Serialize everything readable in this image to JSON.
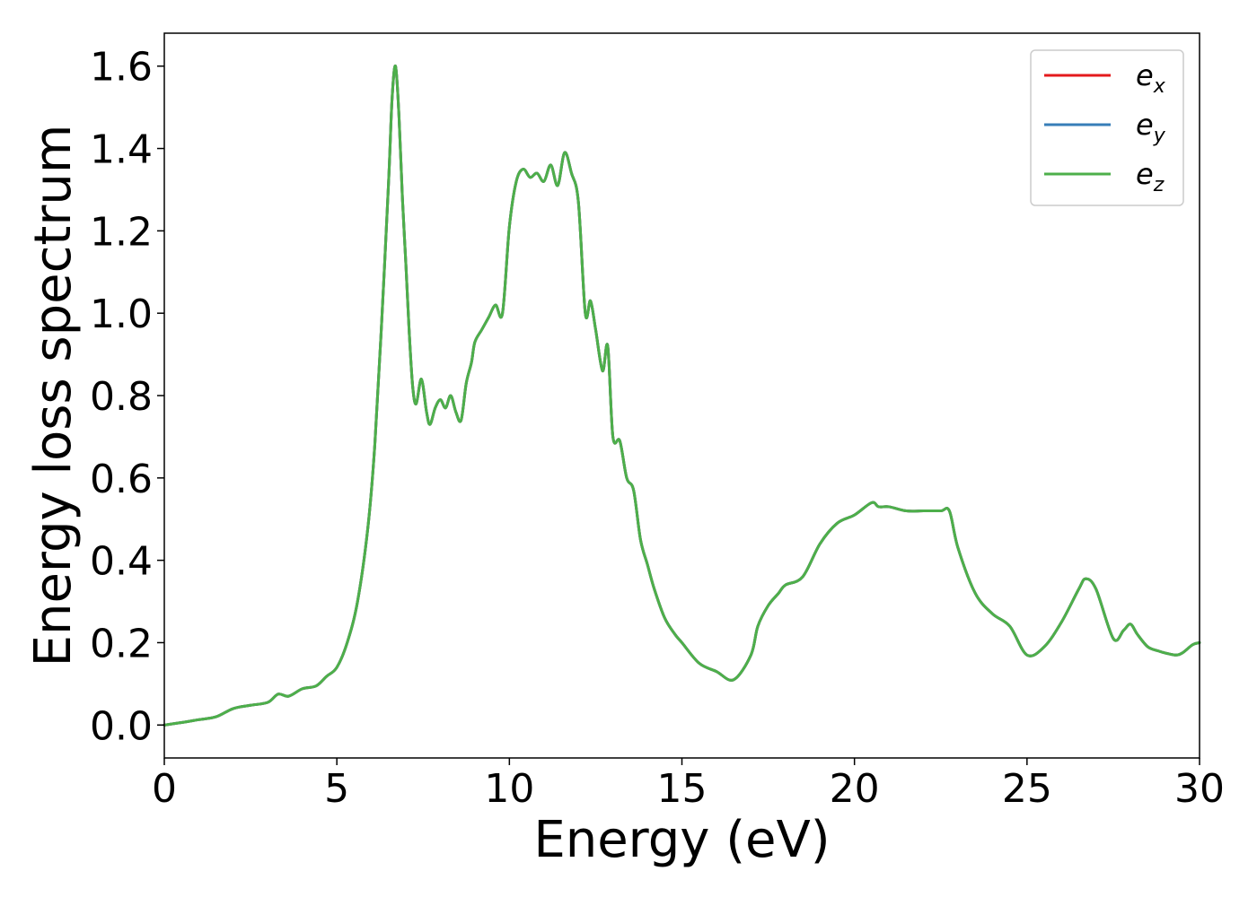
{
  "chart_data": {
    "type": "line",
    "xlabel": "Energy (eV)",
    "ylabel": "Energy loss spectrum",
    "xlim": [
      0,
      30
    ],
    "ylim": [
      -0.08,
      1.68
    ],
    "xticks": [
      0,
      5,
      10,
      15,
      20,
      25,
      30
    ],
    "xtick_labels": [
      "0",
      "5",
      "10",
      "15",
      "20",
      "25",
      "30"
    ],
    "yticks": [
      0.0,
      0.2,
      0.4,
      0.6,
      0.8,
      1.0,
      1.2,
      1.4,
      1.6
    ],
    "ytick_labels": [
      "0.0",
      "0.2",
      "0.4",
      "0.6",
      "0.8",
      "1.0",
      "1.2",
      "1.4",
      "1.6"
    ],
    "grid": false,
    "legend_position": "top-right",
    "x": [
      0.0,
      0.5,
      1.0,
      1.5,
      2.0,
      2.5,
      3.0,
      3.3,
      3.6,
      4.0,
      4.4,
      4.7,
      5.0,
      5.3,
      5.6,
      5.9,
      6.1,
      6.3,
      6.5,
      6.6,
      6.7,
      6.8,
      6.9,
      7.0,
      7.1,
      7.2,
      7.3,
      7.45,
      7.6,
      7.7,
      7.85,
      8.0,
      8.15,
      8.3,
      8.45,
      8.6,
      8.75,
      8.9,
      9.0,
      9.2,
      9.4,
      9.6,
      9.8,
      10.0,
      10.2,
      10.4,
      10.6,
      10.8,
      11.0,
      11.2,
      11.4,
      11.6,
      11.8,
      12.0,
      12.2,
      12.35,
      12.5,
      12.7,
      12.85,
      13.0,
      13.2,
      13.4,
      13.6,
      13.8,
      14.0,
      14.2,
      14.5,
      14.8,
      15.0,
      15.5,
      16.0,
      16.5,
      17.0,
      17.2,
      17.5,
      17.8,
      18.0,
      18.5,
      19.0,
      19.5,
      20.0,
      20.5,
      20.7,
      21.0,
      21.5,
      22.0,
      22.5,
      22.75,
      23.0,
      23.5,
      24.0,
      24.5,
      25.0,
      25.5,
      26.0,
      26.5,
      26.7,
      27.0,
      27.5,
      27.8,
      28.0,
      28.2,
      28.5,
      28.8,
      29.0,
      29.3,
      29.5,
      29.8,
      30.0
    ],
    "series": [
      {
        "name": "e_x",
        "color": "#e41a1c",
        "values": [
          0.0,
          0.006,
          0.013,
          0.02,
          0.04,
          0.048,
          0.055,
          0.075,
          0.07,
          0.088,
          0.095,
          0.118,
          0.14,
          0.2,
          0.3,
          0.48,
          0.68,
          0.98,
          1.32,
          1.52,
          1.6,
          1.48,
          1.28,
          1.12,
          0.95,
          0.82,
          0.78,
          0.84,
          0.76,
          0.73,
          0.77,
          0.79,
          0.77,
          0.8,
          0.76,
          0.74,
          0.83,
          0.88,
          0.93,
          0.96,
          0.99,
          1.02,
          1.0,
          1.21,
          1.32,
          1.35,
          1.33,
          1.34,
          1.32,
          1.36,
          1.31,
          1.39,
          1.34,
          1.27,
          1.0,
          1.03,
          0.96,
          0.86,
          0.92,
          0.7,
          0.69,
          0.6,
          0.57,
          0.45,
          0.39,
          0.33,
          0.26,
          0.22,
          0.2,
          0.15,
          0.13,
          0.11,
          0.17,
          0.24,
          0.29,
          0.32,
          0.34,
          0.36,
          0.44,
          0.49,
          0.51,
          0.54,
          0.53,
          0.53,
          0.52,
          0.52,
          0.52,
          0.52,
          0.43,
          0.32,
          0.27,
          0.24,
          0.17,
          0.19,
          0.25,
          0.33,
          0.355,
          0.33,
          0.21,
          0.23,
          0.245,
          0.22,
          0.19,
          0.18,
          0.175,
          0.17,
          0.175,
          0.195,
          0.2
        ]
      },
      {
        "name": "e_y",
        "color": "#377eb8",
        "values": [
          0.0,
          0.006,
          0.013,
          0.02,
          0.04,
          0.048,
          0.055,
          0.075,
          0.07,
          0.088,
          0.095,
          0.118,
          0.14,
          0.2,
          0.3,
          0.48,
          0.68,
          0.98,
          1.32,
          1.52,
          1.6,
          1.48,
          1.28,
          1.12,
          0.95,
          0.82,
          0.78,
          0.84,
          0.76,
          0.73,
          0.77,
          0.79,
          0.77,
          0.8,
          0.76,
          0.74,
          0.83,
          0.88,
          0.93,
          0.96,
          0.99,
          1.02,
          1.0,
          1.21,
          1.32,
          1.35,
          1.33,
          1.34,
          1.32,
          1.36,
          1.31,
          1.39,
          1.34,
          1.27,
          1.0,
          1.03,
          0.96,
          0.86,
          0.92,
          0.7,
          0.69,
          0.6,
          0.57,
          0.45,
          0.39,
          0.33,
          0.26,
          0.22,
          0.2,
          0.15,
          0.13,
          0.11,
          0.17,
          0.24,
          0.29,
          0.32,
          0.34,
          0.36,
          0.44,
          0.49,
          0.51,
          0.54,
          0.53,
          0.53,
          0.52,
          0.52,
          0.52,
          0.52,
          0.43,
          0.32,
          0.27,
          0.24,
          0.17,
          0.19,
          0.25,
          0.33,
          0.355,
          0.33,
          0.21,
          0.23,
          0.245,
          0.22,
          0.19,
          0.18,
          0.175,
          0.17,
          0.175,
          0.195,
          0.2
        ]
      },
      {
        "name": "e_z",
        "color": "#4daf4a",
        "values": [
          0.0,
          0.006,
          0.013,
          0.02,
          0.04,
          0.048,
          0.055,
          0.075,
          0.07,
          0.088,
          0.095,
          0.118,
          0.14,
          0.2,
          0.3,
          0.48,
          0.68,
          0.98,
          1.32,
          1.52,
          1.6,
          1.48,
          1.28,
          1.12,
          0.95,
          0.82,
          0.78,
          0.84,
          0.76,
          0.73,
          0.77,
          0.79,
          0.77,
          0.8,
          0.76,
          0.74,
          0.83,
          0.88,
          0.93,
          0.96,
          0.99,
          1.02,
          1.0,
          1.21,
          1.32,
          1.35,
          1.33,
          1.34,
          1.32,
          1.36,
          1.31,
          1.39,
          1.34,
          1.27,
          1.0,
          1.03,
          0.96,
          0.86,
          0.92,
          0.7,
          0.69,
          0.6,
          0.57,
          0.45,
          0.39,
          0.33,
          0.26,
          0.22,
          0.2,
          0.15,
          0.13,
          0.11,
          0.17,
          0.24,
          0.29,
          0.32,
          0.34,
          0.36,
          0.44,
          0.49,
          0.51,
          0.54,
          0.53,
          0.53,
          0.52,
          0.52,
          0.52,
          0.52,
          0.43,
          0.32,
          0.27,
          0.24,
          0.17,
          0.19,
          0.25,
          0.33,
          0.355,
          0.33,
          0.21,
          0.23,
          0.245,
          0.22,
          0.19,
          0.18,
          0.175,
          0.17,
          0.175,
          0.195,
          0.2
        ]
      }
    ],
    "legend": [
      {
        "base": "e",
        "sub": "x",
        "color": "#e41a1c"
      },
      {
        "base": "e",
        "sub": "y",
        "color": "#377eb8"
      },
      {
        "base": "e",
        "sub": "z",
        "color": "#4daf4a"
      }
    ]
  }
}
